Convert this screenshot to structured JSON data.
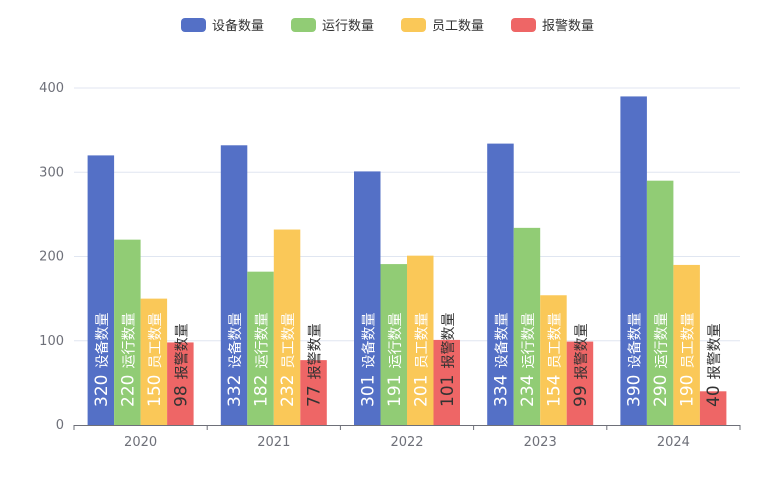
{
  "chart_data": {
    "type": "bar",
    "categories": [
      "2020",
      "2021",
      "2022",
      "2023",
      "2024"
    ],
    "series": [
      {
        "name": "设备数量",
        "color": "#5470c6",
        "values": [
          320,
          332,
          301,
          334,
          390
        ]
      },
      {
        "name": "运行数量",
        "color": "#91cc75",
        "values": [
          220,
          182,
          191,
          234,
          290
        ]
      },
      {
        "name": "员工数量",
        "color": "#fac858",
        "values": [
          150,
          232,
          201,
          154,
          190
        ]
      },
      {
        "name": "报警数量",
        "color": "#ee6666",
        "values": [
          98,
          77,
          101,
          99,
          40
        ]
      }
    ],
    "y_ticks": [
      "0",
      "100",
      "200",
      "300",
      "400"
    ],
    "ylim": [
      0,
      400
    ],
    "legend_position": "top-center",
    "grid": true,
    "data_labels": "inside-bottom-rotated"
  }
}
